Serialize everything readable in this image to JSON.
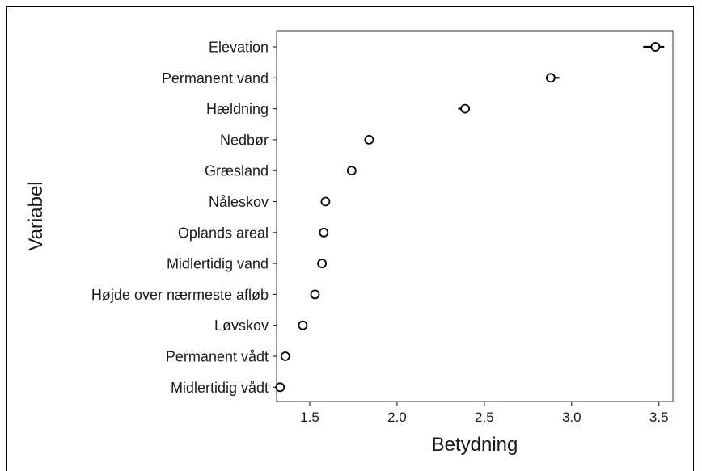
{
  "chart_data": {
    "type": "scatter",
    "xlabel": "Betydning",
    "ylabel": "Variabel",
    "xlim": [
      1.31,
      3.58
    ],
    "xticks": [
      1.5,
      2.0,
      2.5,
      3.0,
      3.5
    ],
    "xtick_labels": [
      "1.5",
      "2.0",
      "2.5",
      "3.0",
      "3.5"
    ],
    "grid": false,
    "categories": [
      "Elevation",
      "Permanent vand",
      "Hældning",
      "Nedbør",
      "Græsland",
      "Nåleskov",
      "Oplands areal",
      "Midlertidig vand",
      "Højde over nærmeste afløb",
      "Løvskov",
      "Permanent vådt",
      "Midlertidig vådt"
    ],
    "values": [
      3.48,
      2.88,
      2.39,
      1.84,
      1.74,
      1.59,
      1.58,
      1.57,
      1.53,
      1.46,
      1.36,
      1.33
    ],
    "error_low": [
      3.41,
      2.88,
      2.35,
      1.84,
      1.74,
      1.59,
      1.58,
      1.57,
      1.53,
      1.46,
      1.36,
      1.33
    ],
    "error_high": [
      3.53,
      2.93,
      2.39,
      1.84,
      1.74,
      1.59,
      1.58,
      1.57,
      1.53,
      1.46,
      1.36,
      1.33
    ],
    "marker": "open-circle",
    "marker_color": "#000000"
  }
}
